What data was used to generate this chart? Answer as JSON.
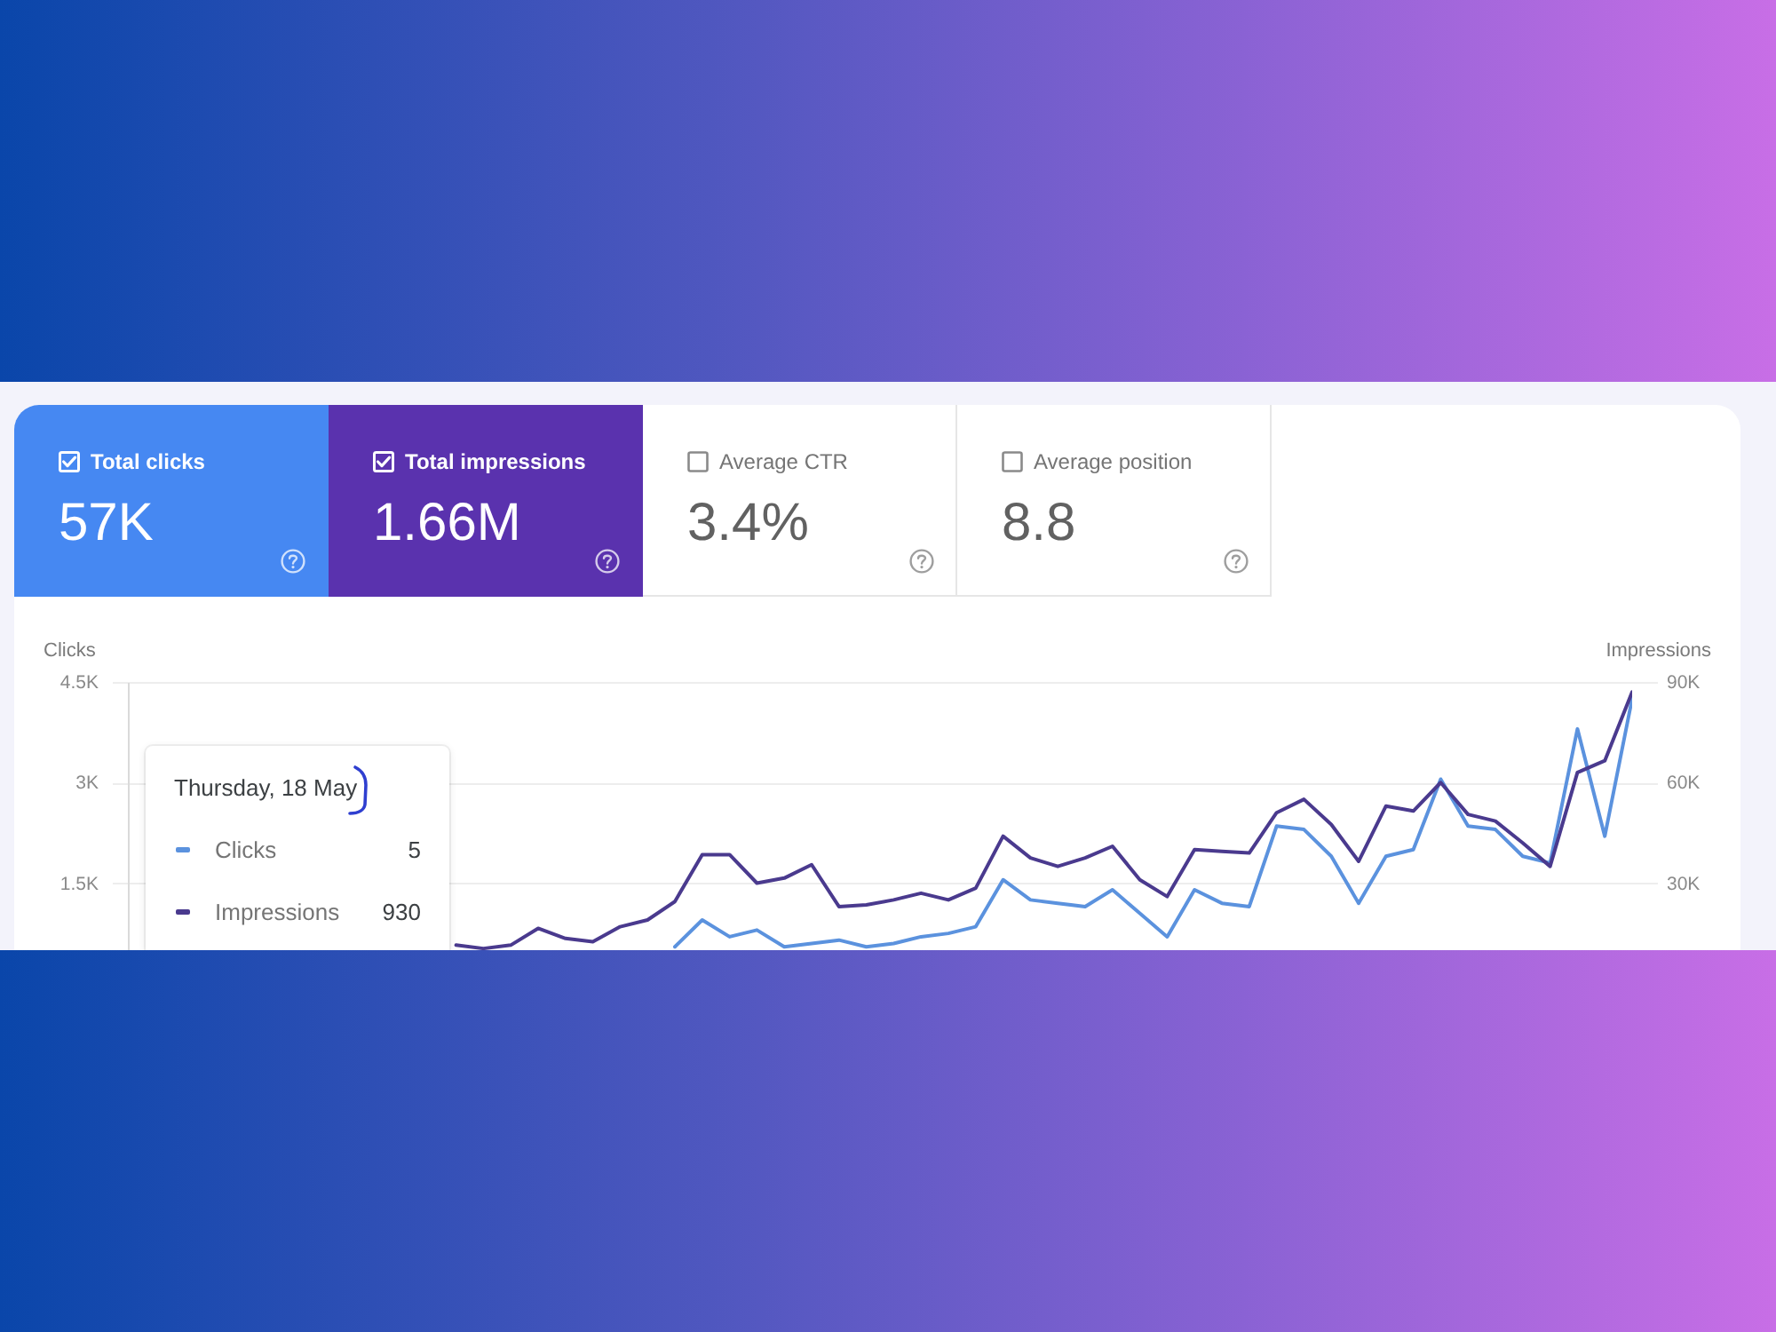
{
  "chart_data": [
    {
      "type": "other",
      "categories": [
        "Total clicks",
        "Total impressions",
        "Average CTR",
        "Average position"
      ],
      "value_labels": [
        "57K",
        "1.66M",
        "3.4%",
        "8.8"
      ],
      "colors": [
        "#4688f2",
        "#5a32ae",
        null,
        null
      ]
    },
    {
      "type": "line",
      "ylabel": "Clicks",
      "y2label": "Impressions",
      "categories": [
        null,
        null,
        null,
        null,
        null,
        null,
        null,
        null,
        null,
        null,
        null,
        null,
        null,
        null,
        null,
        null,
        null,
        null,
        null,
        null,
        null,
        null,
        null,
        null,
        null,
        null,
        null,
        null,
        null,
        null,
        null,
        null,
        null,
        null,
        null,
        null,
        null,
        null,
        null,
        null,
        null,
        null,
        null,
        null,
        null,
        null,
        null,
        null,
        null,
        null,
        null,
        null,
        null,
        null,
        null,
        null
      ],
      "series": [
        {
          "name": "Clicks",
          "color": "#5b92de",
          "values": [
            null,
            null,
            null,
            null,
            null,
            null,
            null,
            null,
            null,
            null,
            null,
            null,
            null,
            null,
            null,
            null,
            null,
            null,
            null,
            null,
            550,
            950,
            700,
            800,
            550,
            600,
            650,
            550,
            600,
            700,
            750,
            850,
            1550,
            1250,
            1200,
            1150,
            1400,
            1050,
            700,
            1400,
            1200,
            1150,
            2350,
            2300,
            1900,
            1200,
            1900,
            2000,
            3050,
            2350,
            2300,
            1900,
            1800,
            3800,
            2200,
            4250
          ]
        },
        {
          "name": "Impressions",
          "color": "#4a3a8e",
          "axis": "y2",
          "values": [
            null,
            null,
            null,
            null,
            null,
            null,
            null,
            null,
            null,
            null,
            null,
            null,
            11500,
            10500,
            11500,
            16500,
            13500,
            12500,
            17000,
            19000,
            24500,
            38500,
            38500,
            30000,
            31500,
            35500,
            23000,
            23500,
            25000,
            27000,
            25000,
            28500,
            44000,
            37500,
            35000,
            37500,
            41000,
            31000,
            26000,
            40000,
            39500,
            39000,
            51000,
            55000,
            47500,
            36500,
            53000,
            51500,
            60000,
            50500,
            48500,
            42000,
            35000,
            63000,
            66500,
            87000
          ]
        }
      ],
      "ylim": [
        500,
        4500
      ],
      "yticks": [
        {
          "value": 1500,
          "label": "1.5K"
        },
        {
          "value": 3000,
          "label": "3K"
        },
        {
          "value": 4500,
          "label": "4.5K"
        }
      ],
      "y2lim": [
        10000,
        90000
      ],
      "y2ticks": [
        {
          "value": 30000,
          "label": "30K"
        },
        {
          "value": 60000,
          "label": "60K"
        },
        {
          "value": 90000,
          "label": "90K"
        }
      ],
      "grid": "y",
      "legend": "bottom left",
      "annotations": [
        "Thursday, 18 May",
        "5",
        "930"
      ]
    }
  ]
}
